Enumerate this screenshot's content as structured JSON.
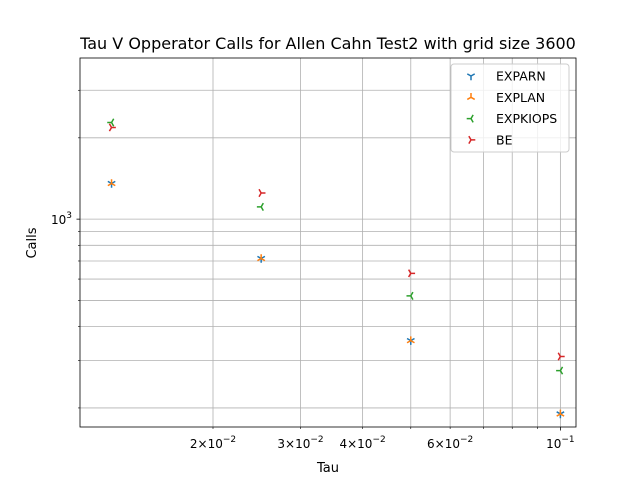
{
  "chart_data": {
    "type": "scatter",
    "title": "Tau V Opperator Calls for Allen Cahn Test2 with grid size 3600",
    "xlabel": "Tau",
    "ylabel": "Calls",
    "xscale": "log",
    "yscale": "log",
    "xlim": [
      0.0108,
      0.1075
    ],
    "ylim": [
      170,
      3950
    ],
    "grid": true,
    "legend_position": "upper right",
    "x_tick_labels": [
      {
        "value": 0.02,
        "mant": "2",
        "exp": "−2"
      },
      {
        "value": 0.03,
        "mant": "3",
        "exp": "−2"
      },
      {
        "value": 0.04,
        "mant": "4",
        "exp": "−2"
      },
      {
        "value": 0.06,
        "mant": "6",
        "exp": "−2"
      },
      {
        "value": 0.1,
        "mant": "",
        "exp": "−1"
      }
    ],
    "x_minor_ticks": [
      0.02,
      0.03,
      0.04,
      0.05,
      0.06,
      0.07,
      0.08,
      0.09
    ],
    "y_tick_labels": [
      {
        "value": 1000,
        "exp": "3"
      }
    ],
    "y_minor_ticks": [
      200,
      300,
      400,
      500,
      600,
      700,
      800,
      900,
      2000,
      3000
    ],
    "x": [
      0.0125,
      0.025,
      0.05,
      0.1
    ],
    "series": [
      {
        "name": "EXPARN",
        "color": "#1f77b4",
        "marker": "tri_down",
        "values": [
          1355,
          715,
          355,
          190
        ]
      },
      {
        "name": "EXPLAN",
        "color": "#ff7f0e",
        "marker": "tri_up",
        "values": [
          1355,
          715,
          355,
          190
        ]
      },
      {
        "name": "EXPKIOPS",
        "color": "#2ca02c",
        "marker": "tri_left",
        "values": [
          2280,
          1110,
          520,
          275
        ]
      },
      {
        "name": "BE",
        "color": "#d62728",
        "marker": "tri_right",
        "values": [
          2185,
          1250,
          630,
          310
        ]
      }
    ]
  }
}
